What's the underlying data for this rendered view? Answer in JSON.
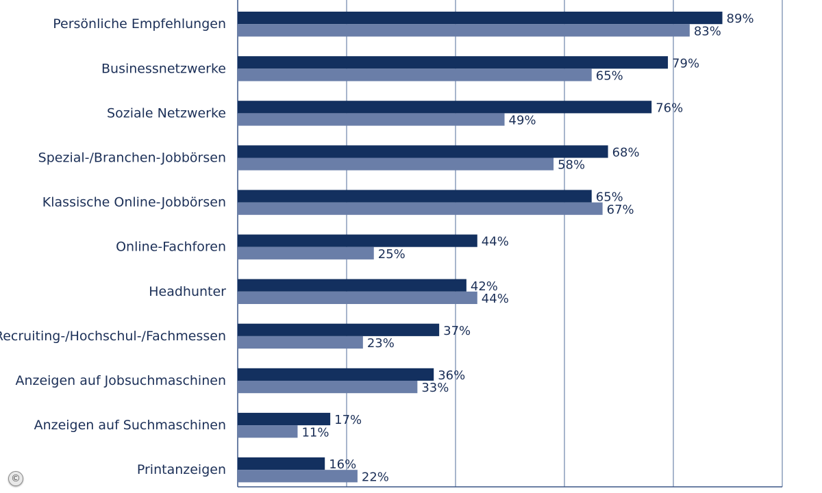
{
  "chart_data": {
    "type": "bar",
    "orientation": "horizontal",
    "categories": [
      "Persönliche Empfehlungen",
      "Businessnetzwerke",
      "Soziale Netzwerke",
      "Spezial-/Branchen-Jobbörsen",
      "Klassische Online-Jobbörsen",
      "Online-Fachforen",
      "Headhunter",
      "Recruiting-/Hochschul-/Fachmessen",
      "Anzeigen auf Jobsuchmaschinen",
      "Anzeigen auf Suchmaschinen",
      "Printanzeigen"
    ],
    "series": [
      {
        "values": [
          89,
          79,
          76,
          68,
          65,
          44,
          42,
          37,
          36,
          17,
          16
        ],
        "color": "#13305f"
      },
      {
        "values": [
          83,
          65,
          49,
          58,
          67,
          25,
          44,
          23,
          33,
          11,
          22
        ],
        "color": "#6a7ea8"
      }
    ],
    "value_suffix": "%",
    "xlim": [
      0,
      100
    ],
    "grid": true,
    "legend": "none"
  },
  "copyright_symbol": "©"
}
